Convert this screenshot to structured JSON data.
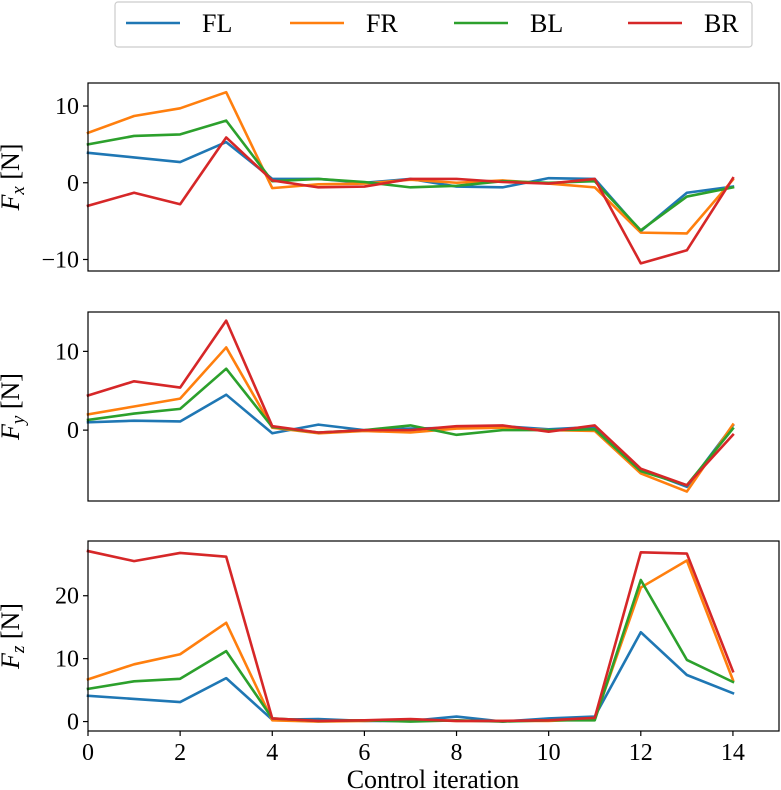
{
  "chart_data": {
    "type": "line",
    "xlabel": "Control iteration",
    "xlim": [
      0,
      15
    ],
    "xticks": [
      0,
      2,
      4,
      6,
      8,
      10,
      12,
      14
    ],
    "x": [
      0,
      1,
      2,
      3,
      4,
      5,
      6,
      7,
      8,
      9,
      10,
      11,
      12,
      13,
      14
    ],
    "legend": {
      "placement": "top-center",
      "entries": [
        {
          "name": "FL",
          "color": "#1f77b4"
        },
        {
          "name": "FR",
          "color": "#ff7f0e"
        },
        {
          "name": "BL",
          "color": "#2ca02c"
        },
        {
          "name": "BR",
          "color": "#d62728"
        }
      ]
    },
    "panels": [
      {
        "ylabel_base": "F",
        "ylabel_sub": "x",
        "ylabel_unit": "[N]",
        "ylim": [
          -11.5,
          13
        ],
        "yticks": [
          {
            "v": 10,
            "label": "10"
          },
          {
            "v": 0,
            "label": "0"
          },
          {
            "v": -10,
            "label": "−10"
          }
        ],
        "series": [
          {
            "name": "FL",
            "values": [
              3.9,
              3.3,
              2.7,
              5.3,
              0.5,
              0.5,
              0.0,
              0.5,
              -0.5,
              -0.6,
              0.6,
              0.5,
              -6.3,
              -1.3,
              -0.5
            ]
          },
          {
            "name": "FR",
            "values": [
              6.5,
              8.7,
              9.7,
              11.8,
              -0.7,
              -0.2,
              -0.1,
              0.4,
              0.0,
              0.3,
              -0.1,
              -0.6,
              -6.5,
              -6.6,
              0.4
            ]
          },
          {
            "name": "BL",
            "values": [
              5.0,
              6.1,
              6.3,
              8.1,
              0.2,
              0.5,
              0.1,
              -0.6,
              -0.4,
              0.2,
              0.0,
              0.2,
              -6.2,
              -1.8,
              -0.6
            ]
          },
          {
            "name": "BR",
            "values": [
              -3.0,
              -1.3,
              -2.8,
              5.9,
              0.3,
              -0.6,
              -0.5,
              0.5,
              0.5,
              0.1,
              -0.1,
              0.5,
              -10.5,
              -8.8,
              0.6
            ]
          }
        ]
      },
      {
        "ylabel_base": "F",
        "ylabel_sub": "y",
        "ylabel_unit": "[N]",
        "ylim": [
          -9,
          15
        ],
        "yticks": [
          {
            "v": 10,
            "label": "10"
          },
          {
            "v": 0,
            "label": "0"
          }
        ],
        "series": [
          {
            "name": "FL",
            "values": [
              1.0,
              1.2,
              1.1,
              4.5,
              -0.4,
              0.7,
              0.0,
              0.2,
              0.3,
              0.5,
              0.1,
              0.4,
              -5.0,
              -7.2,
              0.6
            ]
          },
          {
            "name": "FR",
            "values": [
              2.0,
              3.0,
              4.0,
              10.5,
              0.3,
              -0.4,
              -0.1,
              -0.3,
              0.2,
              0.3,
              0.0,
              -0.1,
              -5.5,
              -7.8,
              0.7
            ]
          },
          {
            "name": "BL",
            "values": [
              1.3,
              2.1,
              2.7,
              7.8,
              0.4,
              -0.3,
              0.0,
              0.6,
              -0.6,
              0.0,
              0.0,
              0.1,
              -5.2,
              -7.0,
              0.2
            ]
          },
          {
            "name": "BR",
            "values": [
              4.4,
              6.2,
              5.4,
              13.9,
              0.5,
              -0.3,
              0.0,
              0.0,
              0.5,
              0.6,
              -0.2,
              0.6,
              -4.9,
              -7.0,
              -0.6
            ]
          }
        ]
      },
      {
        "ylabel_base": "F",
        "ylabel_sub": "z",
        "ylabel_unit": "[N]",
        "ylim": [
          -1.5,
          28.7
        ],
        "yticks": [
          {
            "v": 20,
            "label": "20"
          },
          {
            "v": 10,
            "label": "10"
          },
          {
            "v": 0,
            "label": "0"
          }
        ],
        "series": [
          {
            "name": "FL",
            "values": [
              4.1,
              3.6,
              3.1,
              6.9,
              0.3,
              0.4,
              0.1,
              0.1,
              0.8,
              0.0,
              0.5,
              0.8,
              14.2,
              7.4,
              4.5
            ]
          },
          {
            "name": "FR",
            "values": [
              6.7,
              9.1,
              10.7,
              15.7,
              0.2,
              0.0,
              0.1,
              0.3,
              0.1,
              0.1,
              0.1,
              0.4,
              21.3,
              25.6,
              6.6
            ]
          },
          {
            "name": "BL",
            "values": [
              5.2,
              6.4,
              6.8,
              11.2,
              0.5,
              0.1,
              0.2,
              0.0,
              0.2,
              0.0,
              0.2,
              0.2,
              22.5,
              9.8,
              6.3
            ]
          },
          {
            "name": "BR",
            "values": [
              27.1,
              25.5,
              26.8,
              26.2,
              0.5,
              0.1,
              0.2,
              0.4,
              0.1,
              0.1,
              0.2,
              0.6,
              26.9,
              26.7,
              8.0
            ]
          }
        ]
      }
    ]
  }
}
